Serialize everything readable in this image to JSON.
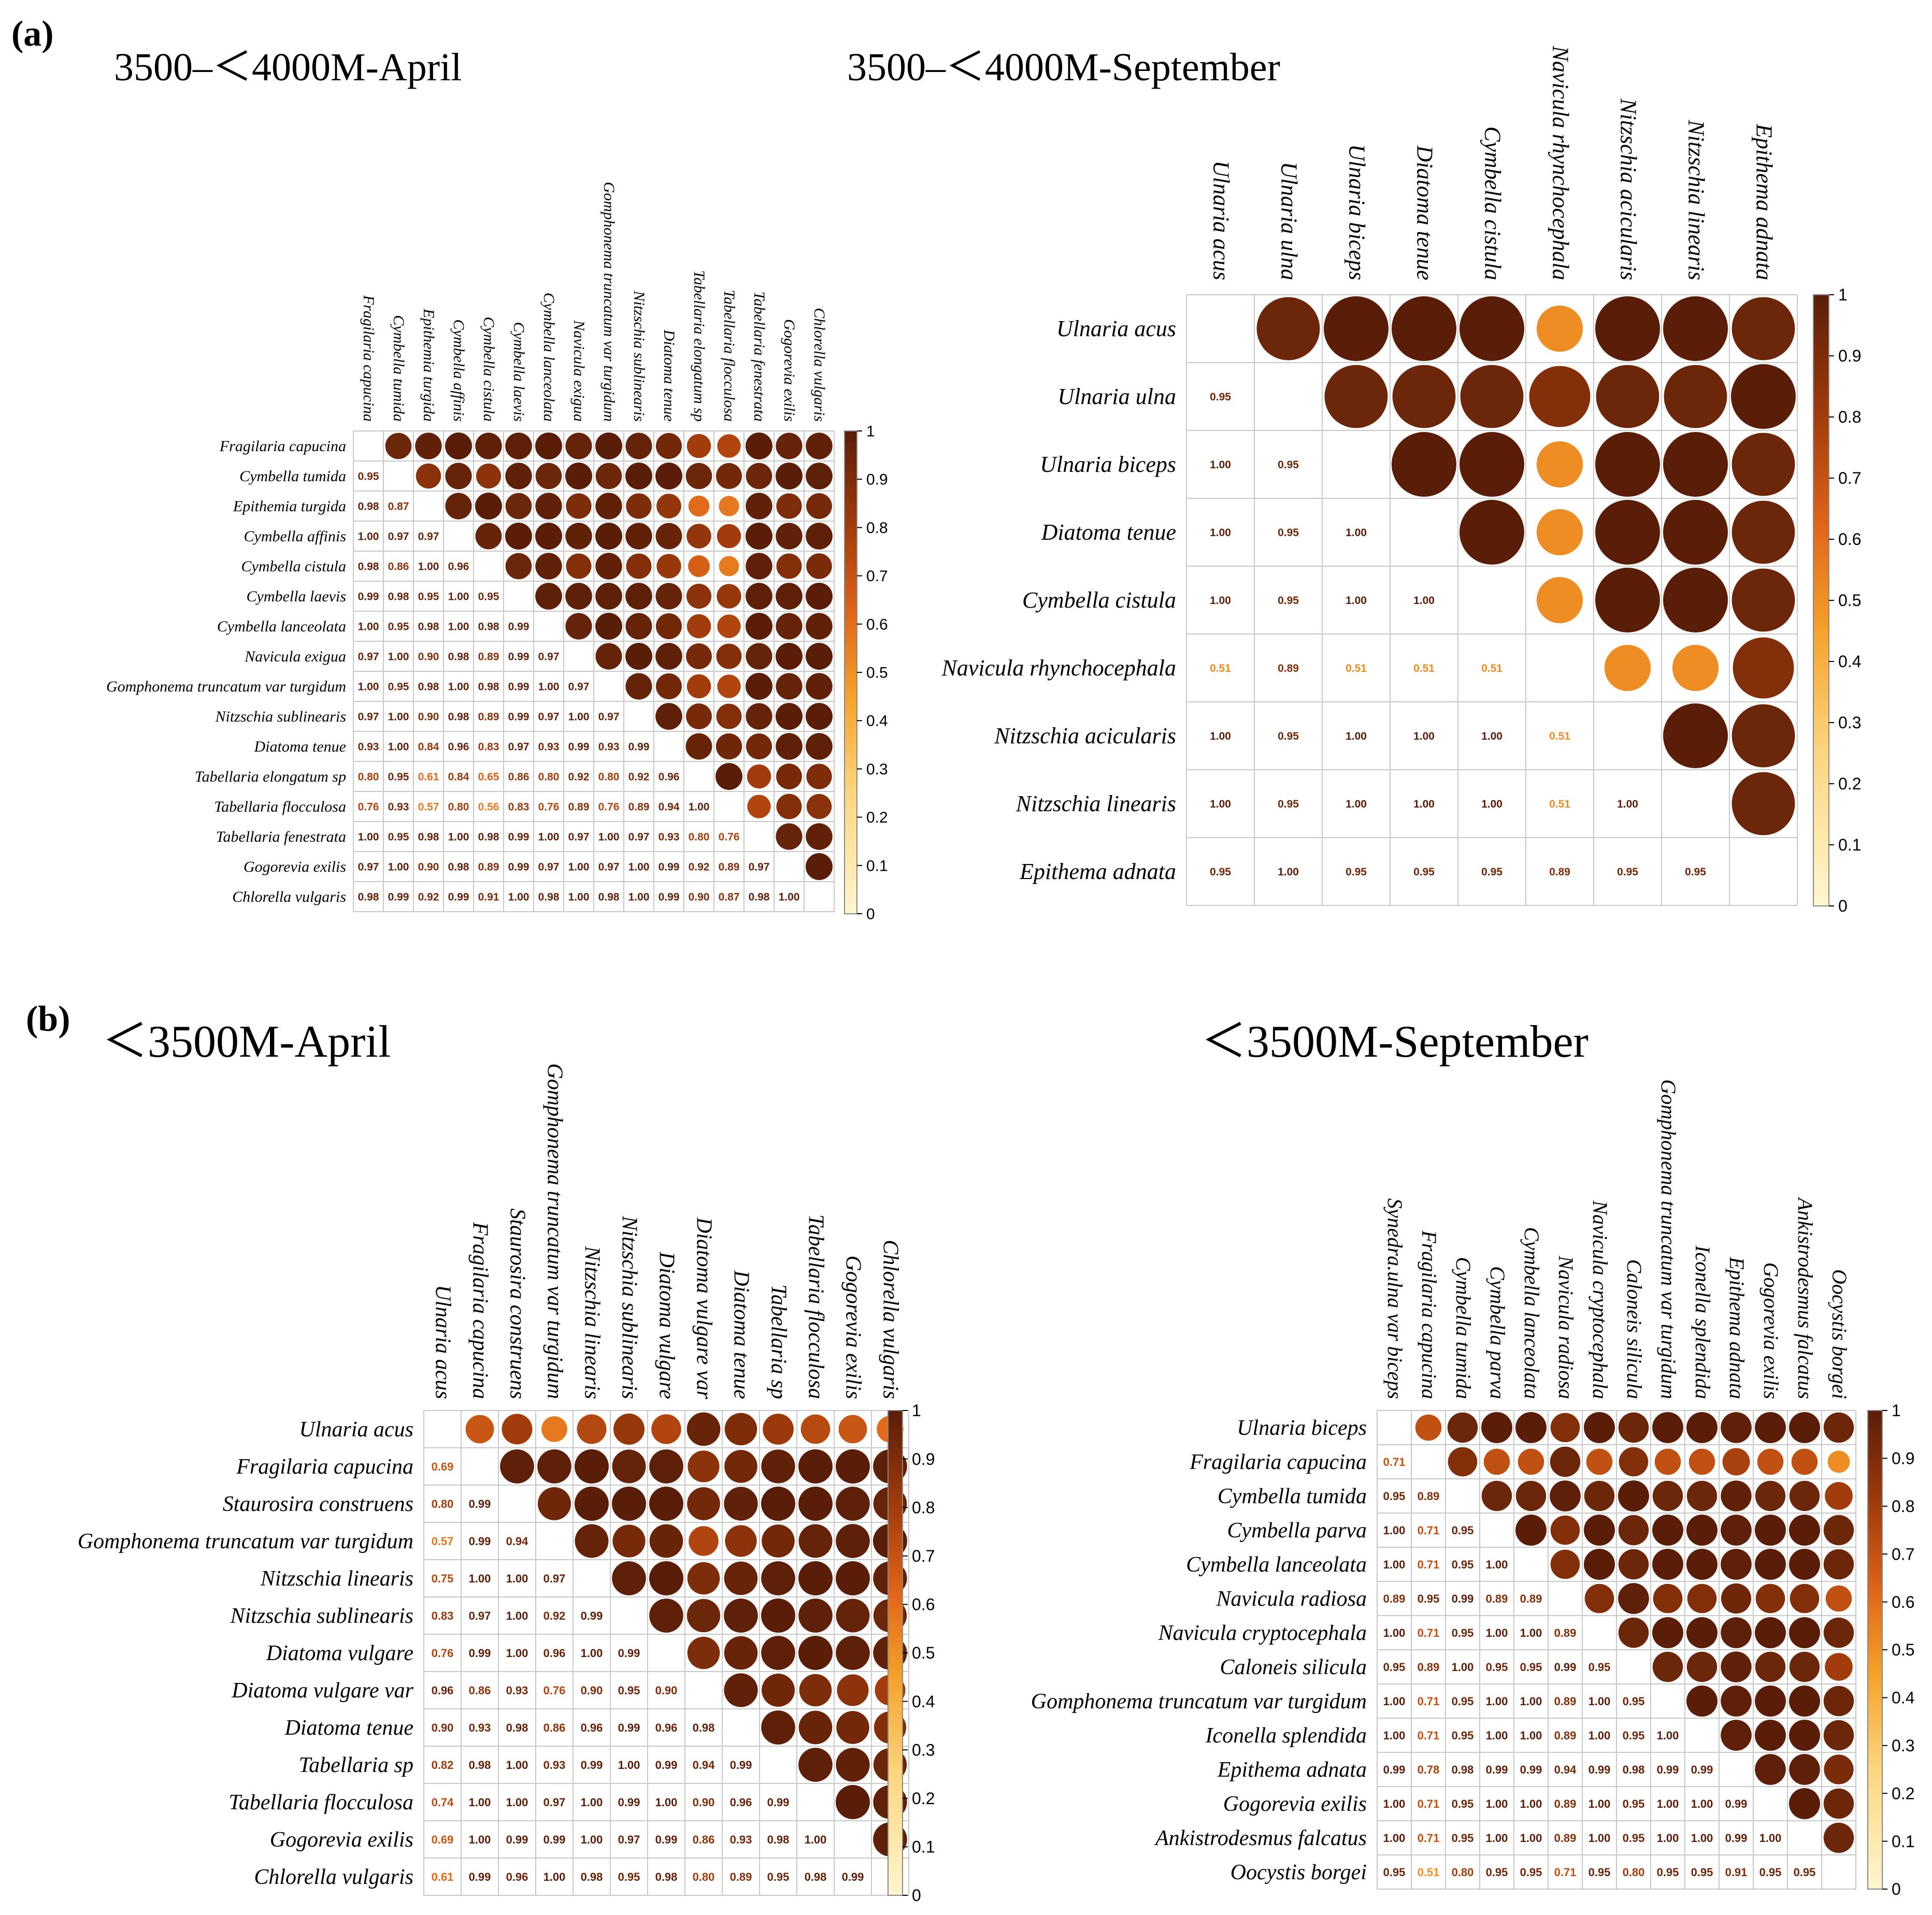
{
  "figure": {
    "panel_labels": [
      "(a)",
      "(b)"
    ],
    "colorbar_ticks": [
      "0",
      "0.1",
      "0.2",
      "0.3",
      "0.4",
      "0.5",
      "0.6",
      "0.7",
      "0.8",
      "0.9",
      "1"
    ],
    "colors": {
      "low": "#fff6cf",
      "mid": "#f4a22a",
      "mid2": "#e0661a",
      "high": "#5a1e08"
    }
  },
  "chart_data": [
    {
      "type": "heatmap",
      "title": "3500–＜4000M-April",
      "species": [
        "Fragilaria capucina",
        "Cymbella tumida",
        "Epithemia turgida",
        "Cymbella affinis",
        "Cymbella cistula",
        "Cymbella laevis",
        "Cymbella lanceolata",
        "Navicula exigua",
        "Gomphonema truncatum var turgidum",
        "Nitzschia sublinearis",
        "Diatoma tenue",
        "Tabellaria elongatum sp",
        "Tabellaria flocculosa",
        "Tabellaria fenestrata",
        "Gogorevia exilis",
        "Chlorella vulgaris"
      ],
      "lower": [
        [],
        [
          "0.95"
        ],
        [
          "0.98",
          "0.87"
        ],
        [
          "1.00",
          "0.97",
          "0.97"
        ],
        [
          "0.98",
          "0.86",
          "1.00",
          "0.96"
        ],
        [
          "0.99",
          "0.98",
          "0.95",
          "1.00",
          "0.95"
        ],
        [
          "1.00",
          "0.95",
          "0.98",
          "1.00",
          "0.98",
          "0.99"
        ],
        [
          "0.97",
          "1.00",
          "0.90",
          "0.98",
          "0.89",
          "0.99",
          "0.97"
        ],
        [
          "1.00",
          "0.95",
          "0.98",
          "1.00",
          "0.98",
          "0.99",
          "1.00",
          "0.97"
        ],
        [
          "0.97",
          "1.00",
          "0.90",
          "0.98",
          "0.89",
          "0.99",
          "0.97",
          "1.00",
          "0.97"
        ],
        [
          "0.93",
          "1.00",
          "0.84",
          "0.96",
          "0.83",
          "0.97",
          "0.93",
          "0.99",
          "0.93",
          "0.99"
        ],
        [
          "0.80",
          "0.95",
          "0.61",
          "0.84",
          "0.65",
          "0.86",
          "0.80",
          "0.92",
          "0.80",
          "0.92",
          "0.96"
        ],
        [
          "0.76",
          "0.93",
          "0.57",
          "0.80",
          "0.56",
          "0.83",
          "0.76",
          "0.89",
          "0.76",
          "0.89",
          "0.94",
          "1.00"
        ],
        [
          "1.00",
          "0.95",
          "0.98",
          "1.00",
          "0.98",
          "0.99",
          "1.00",
          "0.97",
          "1.00",
          "0.97",
          "0.93",
          "0.80",
          "0.76"
        ],
        [
          "0.97",
          "1.00",
          "0.90",
          "0.98",
          "0.89",
          "0.99",
          "0.97",
          "1.00",
          "0.97",
          "1.00",
          "0.99",
          "0.92",
          "0.89",
          "0.97"
        ],
        [
          "0.98",
          "0.99",
          "0.92",
          "0.99",
          "0.91",
          "1.00",
          "0.98",
          "1.00",
          "0.98",
          "1.00",
          "0.99",
          "0.90",
          "0.87",
          "0.98",
          "1.00"
        ]
      ],
      "ylim": [
        0,
        1
      ]
    },
    {
      "type": "heatmap",
      "title": "3500–＜4000M-September",
      "species": [
        "Ulnaria acus",
        "Ulnaria ulna",
        "Ulnaria biceps",
        "Diatoma tenue",
        "Cymbella cistula",
        "Navicula rhynchocephala",
        "Nitzschia acicularis",
        "Nitzschia linearis",
        "Epithema adnata"
      ],
      "lower": [
        [],
        [
          "0.95"
        ],
        [
          "1.00",
          "0.95"
        ],
        [
          "1.00",
          "0.95",
          "1.00"
        ],
        [
          "1.00",
          "0.95",
          "1.00",
          "1.00"
        ],
        [
          "0.51",
          "0.89",
          "0.51",
          "0.51",
          "0.51"
        ],
        [
          "1.00",
          "0.95",
          "1.00",
          "1.00",
          "1.00",
          "0.51"
        ],
        [
          "1.00",
          "0.95",
          "1.00",
          "1.00",
          "1.00",
          "0.51",
          "1.00"
        ],
        [
          "0.95",
          "1.00",
          "0.95",
          "0.95",
          "0.95",
          "0.89",
          "0.95",
          "0.95"
        ]
      ],
      "ylim": [
        0,
        1
      ]
    },
    {
      "type": "heatmap",
      "title": "＜3500M-April",
      "species": [
        "Ulnaria acus",
        "Fragilaria capucina",
        "Staurosira construens",
        "Gomphonema truncatum var turgidum",
        "Nitzschia linearis",
        "Nitzschia sublinearis",
        "Diatoma vulgare",
        "Diatoma vulgare var",
        "Diatoma tenue",
        "Tabellaria sp",
        "Tabellaria  flocculosa",
        "Gogorevia exilis",
        "Chlorella vulgaris"
      ],
      "lower": [
        [],
        [
          "0.69"
        ],
        [
          "0.80",
          "0.99"
        ],
        [
          "0.57",
          "0.99",
          "0.94"
        ],
        [
          "0.75",
          "1.00",
          "1.00",
          "0.97"
        ],
        [
          "0.83",
          "0.97",
          "1.00",
          "0.92",
          "0.99"
        ],
        [
          "0.76",
          "0.99",
          "1.00",
          "0.96",
          "1.00",
          "0.99"
        ],
        [
          "0.96",
          "0.86",
          "0.93",
          "0.76",
          "0.90",
          "0.95",
          "0.90"
        ],
        [
          "0.90",
          "0.93",
          "0.98",
          "0.86",
          "0.96",
          "0.99",
          "0.96",
          "0.98"
        ],
        [
          "0.82",
          "0.98",
          "1.00",
          "0.93",
          "0.99",
          "1.00",
          "0.99",
          "0.94",
          "0.99"
        ],
        [
          "0.74",
          "1.00",
          "1.00",
          "0.97",
          "1.00",
          "0.99",
          "1.00",
          "0.90",
          "0.96",
          "0.99"
        ],
        [
          "0.69",
          "1.00",
          "0.99",
          "0.99",
          "1.00",
          "0.97",
          "0.99",
          "0.86",
          "0.93",
          "0.98",
          "1.00"
        ],
        [
          "0.61",
          "0.99",
          "0.96",
          "1.00",
          "0.98",
          "0.95",
          "0.98",
          "0.80",
          "0.89",
          "0.95",
          "0.98",
          "0.99"
        ]
      ],
      "ylim": [
        0,
        1
      ]
    },
    {
      "type": "heatmap",
      "title": "＜3500M-September",
      "species": [
        "Ulnaria biceps",
        "Fragilaria capucina",
        "Cymbella tumida",
        "Cymbella parva",
        "Cymbella lanceolata",
        "Navicula radiosa",
        "Navicula cryptocephala",
        "Caloneis silicula",
        "Gomphonema truncatum var turgidum",
        "Iconella splendida",
        "Epithema adnata",
        "Gogorevia exilis",
        "Ankistrodesmus falcatus",
        "Oocystis borgei"
      ],
      "col_labels": [
        "Synedra.ulna var biceps",
        "Fragilaria capucina",
        "Cymbella tumida",
        "Cymbella parva",
        "Cymbella lanceolata",
        "Navicula radiosa",
        "Navicula cryptocephala",
        "Caloneis silicula",
        "Gomphonema truncatum var turgidum",
        "Iconella splendida",
        "Epithema adnata",
        "Gogorevia exilis",
        "Ankistrodesmus falcatus",
        "Oocystis borgei"
      ],
      "lower": [
        [],
        [
          "0.71"
        ],
        [
          "0.95",
          "0.89"
        ],
        [
          "1.00",
          "0.71",
          "0.95"
        ],
        [
          "1.00",
          "0.71",
          "0.95",
          "1.00"
        ],
        [
          "0.89",
          "0.95",
          "0.99",
          "0.89",
          "0.89"
        ],
        [
          "1.00",
          "0.71",
          "0.95",
          "1.00",
          "1.00",
          "0.89"
        ],
        [
          "0.95",
          "0.89",
          "1.00",
          "0.95",
          "0.95",
          "0.99",
          "0.95"
        ],
        [
          "1.00",
          "0.71",
          "0.95",
          "1.00",
          "1.00",
          "0.89",
          "1.00",
          "0.95"
        ],
        [
          "1.00",
          "0.71",
          "0.95",
          "1.00",
          "1.00",
          "0.89",
          "1.00",
          "0.95",
          "1.00"
        ],
        [
          "0.99",
          "0.78",
          "0.98",
          "0.99",
          "0.99",
          "0.94",
          "0.99",
          "0.98",
          "0.99",
          "0.99"
        ],
        [
          "1.00",
          "0.71",
          "0.95",
          "1.00",
          "1.00",
          "0.89",
          "1.00",
          "0.95",
          "1.00",
          "1.00",
          "0.99"
        ],
        [
          "1.00",
          "0.71",
          "0.95",
          "1.00",
          "1.00",
          "0.89",
          "1.00",
          "0.95",
          "1.00",
          "1.00",
          "0.99",
          "1.00"
        ],
        [
          "0.95",
          "0.51",
          "0.80",
          "0.95",
          "0.95",
          "0.71",
          "0.95",
          "0.80",
          "0.95",
          "0.95",
          "0.91",
          "0.95",
          "0.95"
        ]
      ],
      "ylim": [
        0,
        1
      ]
    }
  ]
}
